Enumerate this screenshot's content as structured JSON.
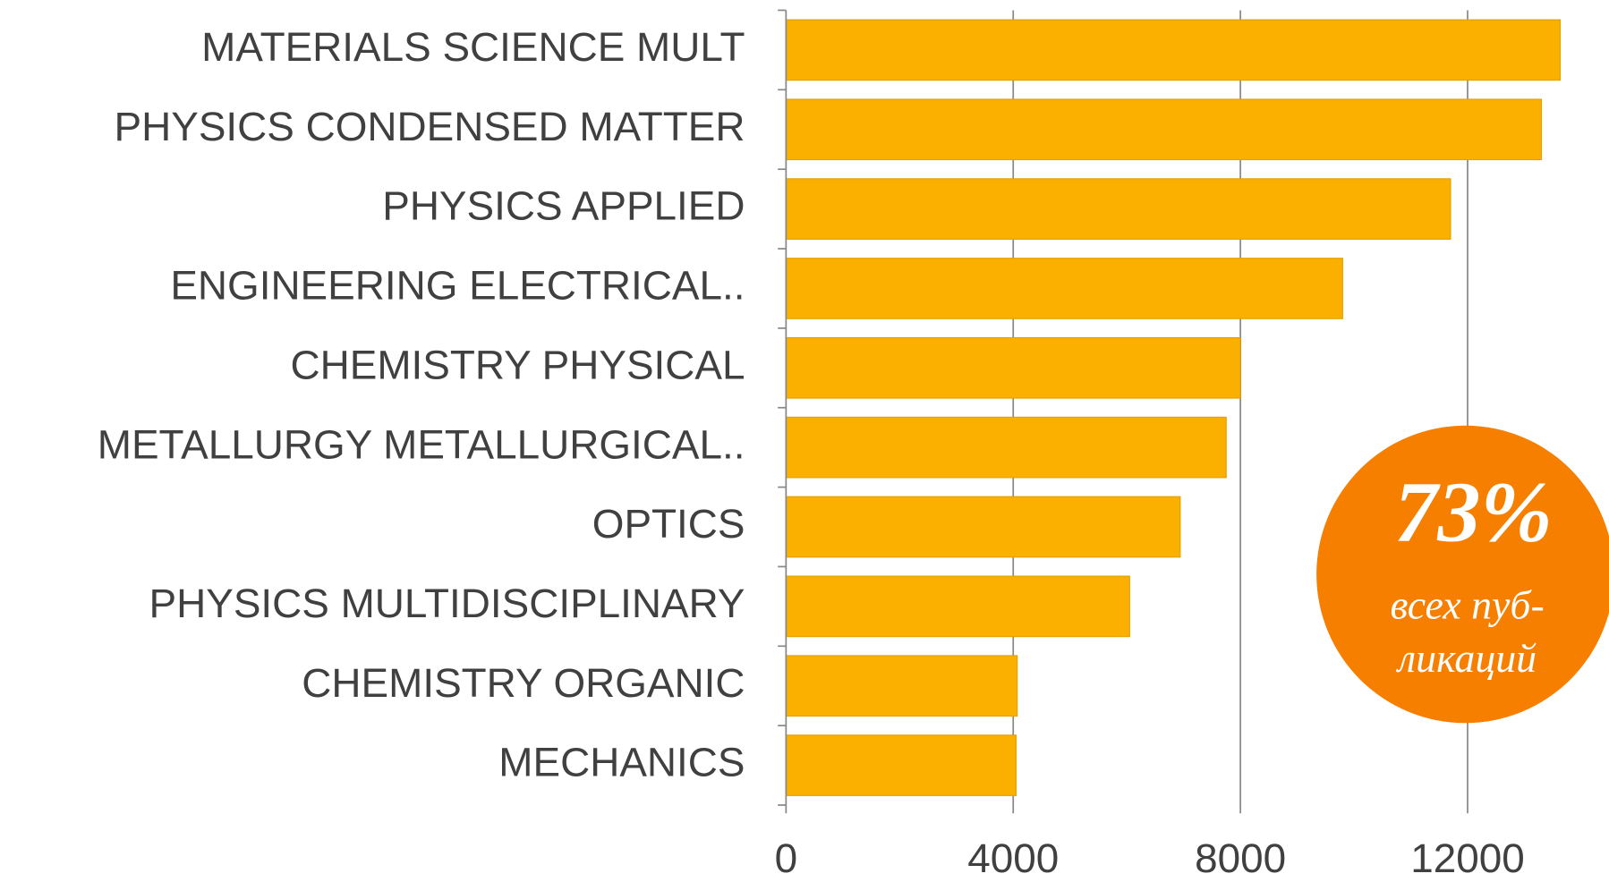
{
  "chart_data": {
    "type": "bar",
    "orientation": "horizontal",
    "categories": [
      "MATERIALS SCIENCE MULT",
      "PHYSICS CONDENSED MATTER",
      "PHYSICS APPLIED",
      "ENGINEERING ELECTRICAL..",
      "CHEMISTRY PHYSICAL",
      "METALLURGY METALLURGICAL..",
      "OPTICS",
      "PHYSICS MULTIDISCIPLINARY",
      "CHEMISTRY ORGANIC",
      "MECHANICS"
    ],
    "values": [
      13630,
      13300,
      11700,
      9800,
      8000,
      7750,
      6940,
      6050,
      4070,
      4050
    ],
    "color": "#fbb000",
    "xlim": [
      0,
      14000
    ],
    "xticks": [
      0,
      4000,
      8000,
      12000
    ],
    "grid": true,
    "annotation": {
      "headline": "73%",
      "lines": [
        "всех пуб-",
        "ликаций"
      ],
      "color": "#f77f00"
    }
  }
}
